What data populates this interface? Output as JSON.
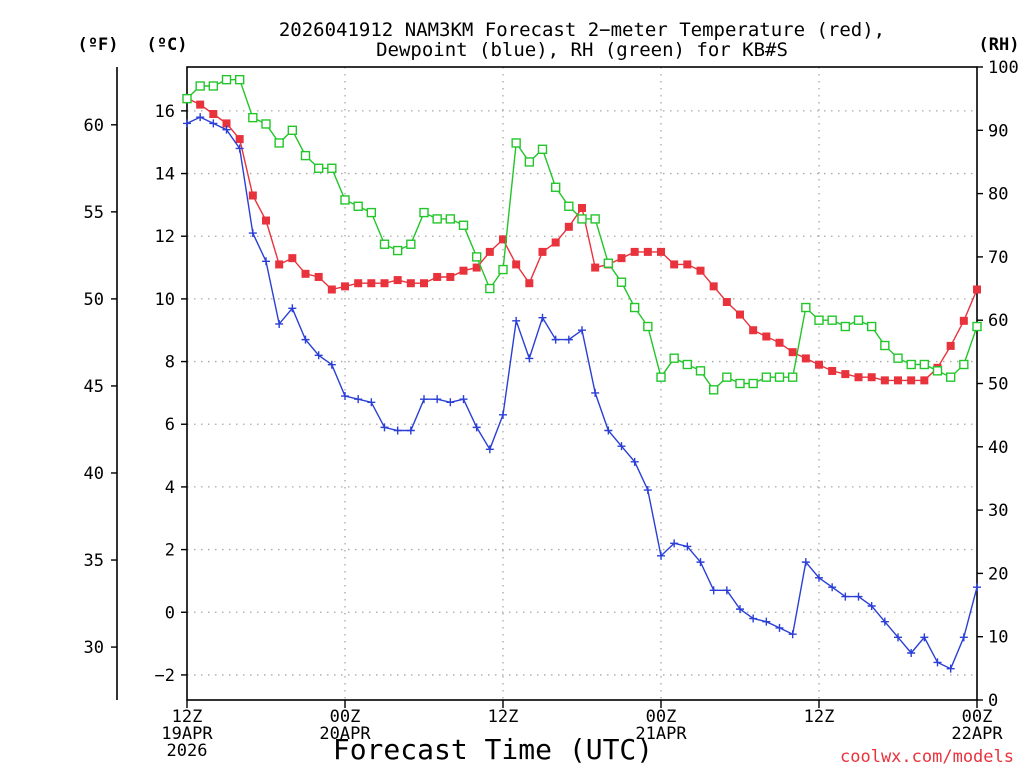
{
  "chart_data": {
    "type": "line",
    "title": "2026041912 NAM3KM Forecast 2-meter Temperature (red), Dewpoint (blue), RH (green) for KB#S",
    "title_lines": [
      "2026041912 NAM3KM Forecast 2−meter Temperature (red),",
      "Dewpoint (blue), RH (green) for KB#S"
    ],
    "xlabel": "Forecast Time (UTC)",
    "credit": "coolwx.com/models",
    "units": {
      "fahrenheit": "(ºF)",
      "celsius": "(ºC)",
      "rh": "(RH)"
    },
    "x_unit": "forecast hour",
    "xlim": [
      0,
      60
    ],
    "ylim_celsius": [
      -2.8,
      17.4
    ],
    "ylim_rh": [
      0,
      100
    ],
    "x_ticks": [
      {
        "hour": 0,
        "lines": [
          "12Z",
          "19APR",
          "2026"
        ]
      },
      {
        "hour": 12,
        "lines": [
          "00Z",
          "20APR"
        ]
      },
      {
        "hour": 24,
        "lines": [
          "12Z"
        ]
      },
      {
        "hour": 36,
        "lines": [
          "00Z",
          "21APR"
        ]
      },
      {
        "hour": 48,
        "lines": [
          "12Z"
        ]
      },
      {
        "hour": 60,
        "lines": [
          "00Z",
          "22APR"
        ]
      }
    ],
    "celsius_ticks": [
      "-2",
      "0",
      "2",
      "4",
      "6",
      "8",
      "10",
      "12",
      "14",
      "16"
    ],
    "fahrenheit_ticks": [
      "30",
      "35",
      "40",
      "45",
      "50",
      "55",
      "60"
    ],
    "rh_ticks": [
      "0",
      "10",
      "20",
      "30",
      "40",
      "50",
      "60",
      "70",
      "80",
      "90",
      "100"
    ],
    "series": [
      {
        "name": "Temperature",
        "axis": "celsius",
        "color": "#e8323c",
        "marker": "filled-square",
        "x": [
          0,
          1,
          2,
          3,
          4,
          5,
          6,
          7,
          8,
          9,
          10,
          11,
          12,
          13,
          14,
          15,
          16,
          17,
          18,
          19,
          20,
          21,
          22,
          23,
          24,
          25,
          26,
          27,
          28,
          29,
          30,
          31,
          32,
          33,
          34,
          35,
          36,
          37,
          38,
          39,
          40,
          41,
          42,
          43,
          44,
          45,
          46,
          47,
          48,
          49,
          50,
          51,
          52,
          53,
          54,
          55,
          56,
          57,
          58,
          59,
          60
        ],
        "values": [
          16.4,
          16.2,
          15.9,
          15.6,
          15.1,
          13.3,
          12.5,
          11.1,
          11.3,
          10.8,
          10.7,
          10.3,
          10.4,
          10.5,
          10.5,
          10.5,
          10.6,
          10.5,
          10.5,
          10.7,
          10.7,
          10.9,
          11.0,
          11.5,
          11.9,
          11.1,
          10.5,
          11.5,
          11.8,
          12.3,
          12.9,
          11.0,
          11.1,
          11.3,
          11.5,
          11.5,
          11.5,
          11.1,
          11.1,
          10.9,
          10.4,
          9.9,
          9.5,
          9.0,
          8.8,
          8.6,
          8.3,
          8.1,
          7.9,
          7.7,
          7.6,
          7.5,
          7.5,
          7.4,
          7.4,
          7.4,
          7.4,
          7.8,
          8.5,
          9.3,
          10.3
        ]
      },
      {
        "name": "Dewpoint",
        "axis": "celsius",
        "color": "#2a3fd6",
        "marker": "plus",
        "x": [
          0,
          1,
          2,
          3,
          4,
          5,
          6,
          7,
          8,
          9,
          10,
          11,
          12,
          13,
          14,
          15,
          16,
          17,
          18,
          19,
          20,
          21,
          22,
          23,
          24,
          25,
          26,
          27,
          28,
          29,
          30,
          31,
          32,
          33,
          34,
          35,
          36,
          37,
          38,
          39,
          40,
          41,
          42,
          43,
          44,
          45,
          46,
          47,
          48,
          49,
          50,
          51,
          52,
          53,
          54,
          55,
          56,
          57,
          58,
          59,
          60
        ],
        "values": [
          15.6,
          15.8,
          15.6,
          15.4,
          14.8,
          12.1,
          11.2,
          9.2,
          9.7,
          8.7,
          8.2,
          7.9,
          6.9,
          6.8,
          6.7,
          5.9,
          5.8,
          5.8,
          6.8,
          6.8,
          6.7,
          6.8,
          5.9,
          5.2,
          6.3,
          9.3,
          8.1,
          9.4,
          8.7,
          8.7,
          9.0,
          7.0,
          5.8,
          5.3,
          4.8,
          3.9,
          1.8,
          2.2,
          2.1,
          1.6,
          0.7,
          0.7,
          0.1,
          -0.2,
          -0.3,
          -0.5,
          -0.7,
          1.6,
          1.1,
          0.8,
          0.5,
          0.5,
          0.2,
          -0.3,
          -0.8,
          -1.3,
          -0.8,
          -1.6,
          -1.8,
          -0.8,
          0.8
        ]
      },
      {
        "name": "RH",
        "axis": "rh",
        "color": "#22c62a",
        "marker": "open-square",
        "x": [
          0,
          1,
          2,
          3,
          4,
          5,
          6,
          7,
          8,
          9,
          10,
          11,
          12,
          13,
          14,
          15,
          16,
          17,
          18,
          19,
          20,
          21,
          22,
          23,
          24,
          25,
          26,
          27,
          28,
          29,
          30,
          31,
          32,
          33,
          34,
          35,
          36,
          37,
          38,
          39,
          40,
          41,
          42,
          43,
          44,
          45,
          46,
          47,
          48,
          49,
          50,
          51,
          52,
          53,
          54,
          55,
          56,
          57,
          58,
          59,
          60
        ],
        "values": [
          95,
          97,
          97,
          98,
          98,
          92,
          91,
          88,
          90,
          86,
          84,
          84,
          79,
          78,
          77,
          72,
          71,
          72,
          77,
          76,
          76,
          75,
          70,
          65,
          68,
          88,
          85,
          87,
          81,
          78,
          76,
          76,
          69,
          66,
          62,
          59,
          51,
          54,
          53,
          52,
          49,
          51,
          50,
          50,
          51,
          51,
          51,
          62,
          60,
          60,
          59,
          60,
          59,
          56,
          54,
          53,
          53,
          52,
          51,
          53,
          59
        ]
      }
    ]
  }
}
